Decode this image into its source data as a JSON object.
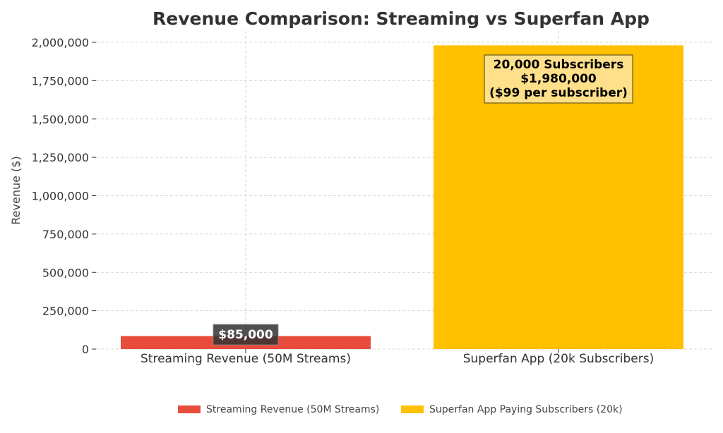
{
  "chart_data": {
    "type": "bar",
    "title": "Revenue Comparison: Streaming vs Superfan App",
    "xlabel": "",
    "ylabel": "Revenue ($)",
    "ylim": [
      0,
      2000000
    ],
    "yticks": [
      0,
      250000,
      500000,
      750000,
      1000000,
      1250000,
      1500000,
      1750000,
      2000000
    ],
    "ytick_labels": [
      "0",
      "250,000",
      "500,000",
      "750,000",
      "1,000,000",
      "1,250,000",
      "1,500,000",
      "1,750,000",
      "2,000,000"
    ],
    "categories": [
      "Streaming Revenue (50M Streams)",
      "Superfan App (20k Subscribers)"
    ],
    "values": [
      85000,
      1980000
    ],
    "colors": [
      "#e74c3c",
      "#ffc100"
    ],
    "grid": true,
    "legend_position": "bottom-center",
    "legend": [
      {
        "label": "Streaming Revenue (50M Streams)",
        "color": "#e74c3c"
      },
      {
        "label": "Superfan App Paying Subscribers (20k)",
        "color": "#ffc100"
      }
    ],
    "annotations": [
      {
        "lines": [
          "$85,000"
        ],
        "box_fill": "#333333",
        "box_opacity": 0.85,
        "text_color": "#ffffff"
      },
      {
        "lines": [
          "20,000 Subscribers",
          "$1,980,000",
          "($99 per subscriber)"
        ],
        "box_fill": "#ffe08a",
        "box_stroke": "#6b5a1e",
        "text_color": "#000000"
      }
    ]
  }
}
